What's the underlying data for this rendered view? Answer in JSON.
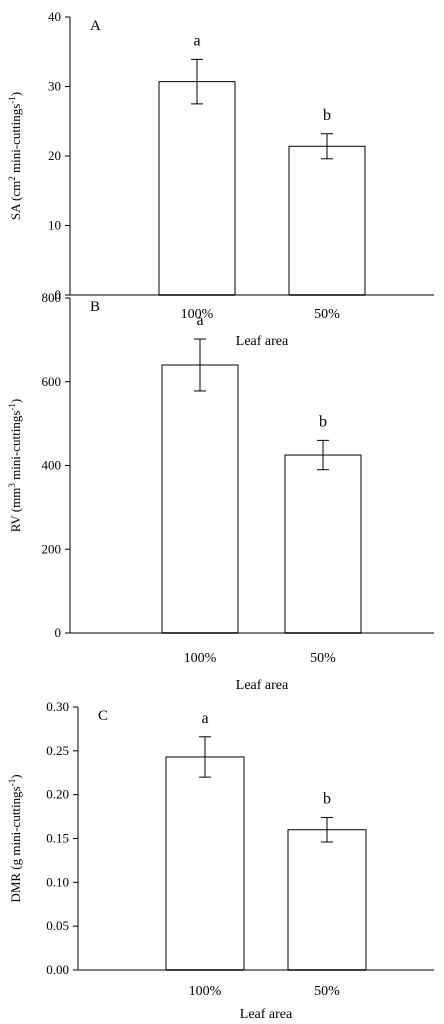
{
  "chart_data": [
    {
      "type": "bar",
      "panel_label": "A",
      "categories": [
        "100%",
        "50%"
      ],
      "values": [
        30.7,
        21.4
      ],
      "errors": [
        3.2,
        1.8
      ],
      "letters": [
        "a",
        "b"
      ],
      "xlabel": "Leaf area",
      "ylabel": {
        "pre": "SA (cm",
        "sup1": "2",
        "mid": " mini-cuttings",
        "sup2": "-1",
        "post": ")"
      },
      "ylim": [
        0,
        40
      ],
      "yticks": [
        0,
        10,
        20,
        30,
        40
      ],
      "ytick_labels": [
        "0",
        "10",
        "20",
        "30",
        "40"
      ],
      "grid": false
    },
    {
      "type": "bar",
      "panel_label": "B",
      "categories": [
        "100%",
        "50%"
      ],
      "values": [
        640,
        425
      ],
      "errors": [
        62,
        35
      ],
      "letters": [
        "a",
        "b"
      ],
      "xlabel": "Leaf area",
      "ylabel": {
        "pre": "RV (mm",
        "sup1": "3",
        "mid": " mini-cuttings",
        "sup2": "-1",
        "post": ")"
      },
      "ylim": [
        0,
        800
      ],
      "yticks": [
        0,
        200,
        400,
        600,
        800
      ],
      "ytick_labels": [
        "0",
        "200",
        "400",
        "600",
        "800"
      ],
      "grid": false
    },
    {
      "type": "bar",
      "panel_label": "C",
      "categories": [
        "100%",
        "50%"
      ],
      "values": [
        0.243,
        0.16
      ],
      "errors": [
        0.023,
        0.014
      ],
      "letters": [
        "a",
        "b"
      ],
      "xlabel": "Leaf area",
      "ylabel": {
        "pre": "DMR (g mini-cuttings",
        "sup1": "",
        "mid": "",
        "sup2": "-1",
        "post": ")"
      },
      "ylim": [
        0,
        0.3
      ],
      "yticks": [
        0,
        0.05,
        0.1,
        0.15,
        0.2,
        0.25,
        0.3
      ],
      "ytick_labels": [
        "0.00",
        "0.05",
        "0.10",
        "0.15",
        "0.20",
        "0.25",
        "0.30"
      ],
      "grid": false
    }
  ]
}
